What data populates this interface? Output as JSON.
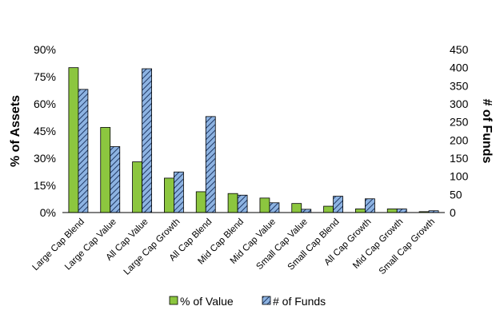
{
  "chart_data": {
    "type": "bar",
    "title": "",
    "categories": [
      "Large Cap Blend",
      "Large Cap Value",
      "All Cap Value",
      "Large Cap Growth",
      "All Cap Blend",
      "Mid Cap Blend",
      "Mid Cap Value",
      "Small Cap Value",
      "Small Cap Blend",
      "All Cap Growth",
      "Mid Cap Growth",
      "Small Cap Growth"
    ],
    "series": [
      {
        "name": "% of Value",
        "axis": "left",
        "color": "#8CC63F",
        "values": [
          80,
          47,
          28,
          19,
          11.5,
          10.5,
          8,
          5,
          3.5,
          2,
          2,
          0.5
        ]
      },
      {
        "name": "# of Funds",
        "axis": "right",
        "color": "#8DB3E2",
        "pattern": "diagonal-hatch",
        "values": [
          340,
          182,
          397,
          112,
          265,
          48,
          27,
          9,
          45,
          38,
          10,
          5
        ]
      }
    ],
    "left_axis": {
      "label": "% of Assets",
      "min": 0,
      "max": 90,
      "step": 15,
      "ticks": [
        "0%",
        "15%",
        "30%",
        "45%",
        "60%",
        "75%",
        "90%"
      ]
    },
    "right_axis": {
      "label": "# of Funds",
      "min": 0,
      "max": 450,
      "step": 50,
      "ticks": [
        "0",
        "50",
        "100",
        "150",
        "200",
        "250",
        "300",
        "350",
        "400",
        "450"
      ]
    },
    "legend": {
      "placement": "bottom",
      "entries": [
        "% of Value",
        "# of Funds"
      ]
    },
    "grid": false
  }
}
